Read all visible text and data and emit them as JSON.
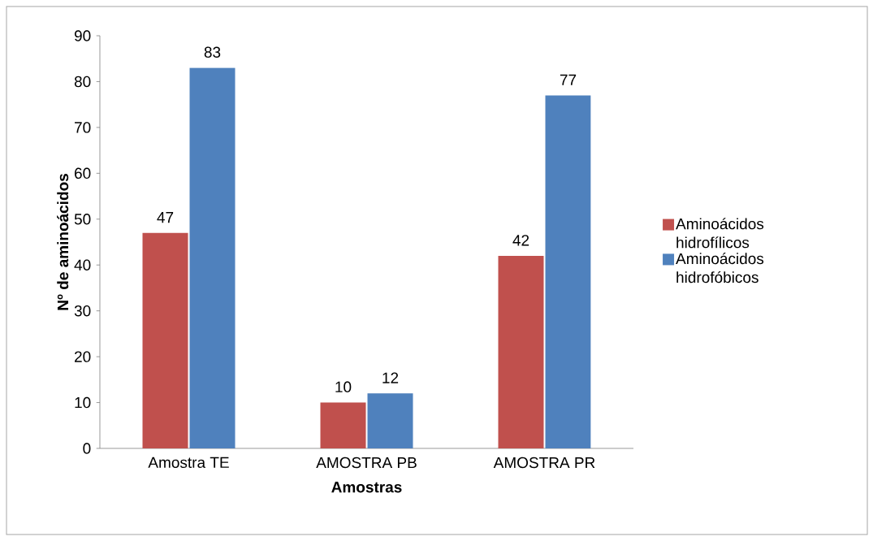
{
  "chart_data": {
    "type": "bar",
    "xlabel": "Amostras",
    "ylabel": "Nº de aminoácidos",
    "categories": [
      "Amostra TE",
      "AMOSTRA PB",
      "AMOSTRA PR"
    ],
    "series": [
      {
        "name": "Aminoácidos hidrofílicos",
        "color": "#c0504d",
        "values": [
          47,
          10,
          42
        ]
      },
      {
        "name": "Aminoácidos hidrofóbicos",
        "color": "#4f81bd",
        "values": [
          83,
          12,
          77
        ]
      }
    ],
    "ylim": [
      0,
      90
    ],
    "yticks": [
      0,
      10,
      20,
      30,
      40,
      50,
      60,
      70,
      80,
      90
    ],
    "data_labels": true,
    "legend": "right"
  }
}
